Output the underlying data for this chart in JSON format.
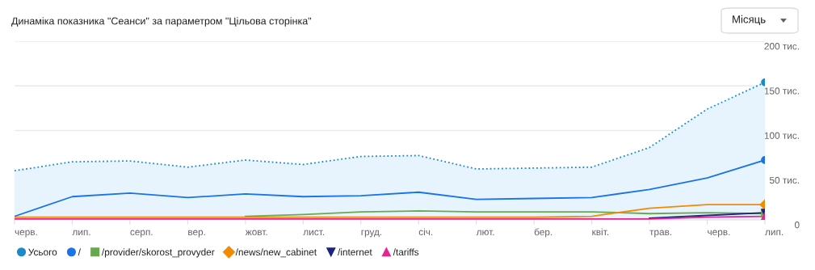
{
  "chart_data": {
    "type": "line",
    "title": "Динаміка показника \"Сеанси\" за параметром \"Цільова сторінка\"",
    "annotations": [
      "Місяць"
    ],
    "categories": [
      "черв.",
      "лип.",
      "серп.",
      "вер.",
      "жовт.",
      "лист.",
      "груд.",
      "січ.",
      "лют.",
      "бер.",
      "квіт.",
      "трав.",
      "черв.",
      "лип."
    ],
    "series": [
      {
        "name": "Усього",
        "type": "area",
        "line_style": "dotted",
        "color": "#1b8ac6",
        "values": [
          55,
          65,
          66,
          59,
          67,
          62,
          71,
          72,
          57,
          58,
          59,
          81,
          124,
          154
        ]
      },
      {
        "name": "/",
        "line_style": "solid",
        "color": "#1a73e8",
        "values": [
          4,
          26,
          30,
          25,
          29,
          26,
          27,
          31,
          23,
          24,
          25,
          34,
          47,
          67
        ]
      },
      {
        "name": "/provider/skorost_provyder",
        "line_style": "solid",
        "color": "#6aa84f",
        "values": [
          null,
          null,
          null,
          null,
          4,
          6,
          9,
          10,
          9,
          9,
          9,
          7,
          8,
          7
        ]
      },
      {
        "name": "/news/new_cabinet",
        "line_style": "solid",
        "color": "#f28b00",
        "values": [
          3,
          3,
          3,
          3,
          3,
          3,
          3,
          3,
          3,
          3,
          4,
          13,
          17,
          17
        ]
      },
      {
        "name": "/internet",
        "line_style": "solid",
        "color": "#1a237e",
        "values": [
          null,
          null,
          null,
          null,
          null,
          null,
          null,
          null,
          null,
          null,
          null,
          2,
          5,
          8
        ]
      },
      {
        "name": "/tariffs",
        "line_style": "solid",
        "color": "#e52592",
        "values": [
          1,
          1,
          1,
          1,
          1,
          1,
          1,
          1,
          1,
          1,
          1,
          1,
          3,
          4
        ]
      }
    ],
    "ylim": [
      0,
      200
    ],
    "yticks": [
      {
        "value": 0,
        "label": "0"
      },
      {
        "value": 50,
        "label": "50 тис."
      },
      {
        "value": 100,
        "label": "100 тис."
      },
      {
        "value": 150,
        "label": "150 тис."
      },
      {
        "value": 200,
        "label": "200 тис."
      }
    ],
    "grid": "y",
    "legend": "bottom left"
  }
}
